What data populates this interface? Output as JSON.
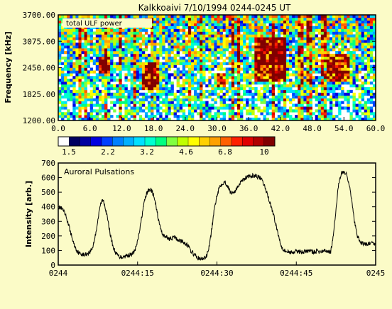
{
  "title": "Kalkkoaivi 7/10/1994 0244-0245 UT",
  "chart_data": [
    {
      "type": "heatmap",
      "title": "Kalkkoaivi 7/10/1994 0244-0245 UT",
      "inset_label": "total ULF power",
      "ylabel": "Frequency [kHz]",
      "xlabel": "",
      "xlim": [
        0,
        60
      ],
      "ylim": [
        1200,
        3700
      ],
      "x_ticks": [
        "0.0",
        "6.0",
        "12.0",
        "18.0",
        "24.0",
        "30.0",
        "36.0",
        "42.0",
        "48.0",
        "54.0",
        "60.0"
      ],
      "y_ticks": [
        "1200.00",
        "1825.00",
        "2450.00",
        "3075.00",
        "3700.00"
      ],
      "colorbar": {
        "tick_labels": [
          "1.5",
          "2.2",
          "3.2",
          "4.6",
          "6.8",
          "10"
        ],
        "colors": [
          "#ffffff",
          "#000060",
          "#0000a0",
          "#0000e0",
          "#0040ff",
          "#0080ff",
          "#00b0ff",
          "#00e0ff",
          "#00ffd0",
          "#00ff80",
          "#80ff40",
          "#c0ff00",
          "#ffff00",
          "#ffd000",
          "#ffa000",
          "#ff6000",
          "#ff2000",
          "#e00000",
          "#b00000",
          "#800000"
        ]
      },
      "intense_bands": [
        {
          "x": [
            16,
            19
          ],
          "y": [
            1950,
            2550
          ]
        },
        {
          "x": [
            30,
            31.5
          ],
          "y": [
            2000,
            2350
          ]
        },
        {
          "x": [
            37,
            43
          ],
          "y": [
            2150,
            3150
          ]
        },
        {
          "x": [
            51,
            55
          ],
          "y": [
            2150,
            2750
          ]
        },
        {
          "x": [
            7.5,
            10
          ],
          "y": [
            2300,
            2700
          ]
        }
      ]
    },
    {
      "type": "line",
      "title": "Auroral Pulsations",
      "xlabel": "",
      "ylabel": "Intensity [arb.]",
      "x_ticks": [
        "0244",
        "0244:15",
        "0244:30",
        "0244:45",
        "0245"
      ],
      "xlim": [
        0,
        60
      ],
      "ylim": [
        0,
        700
      ],
      "y_ticks": [
        0,
        100,
        200,
        300,
        400,
        500,
        600,
        700
      ],
      "series": [
        {
          "x": [
            0,
            0.5,
            1.0,
            1.5,
            2.0,
            2.5,
            3.0,
            3.5,
            4.0,
            4.5,
            5.0,
            5.5,
            6.0,
            6.5,
            7.0,
            7.5,
            8.0,
            8.5,
            9.0,
            9.5,
            10.0,
            10.5,
            11.0,
            11.5,
            12.0,
            12.5,
            13.0,
            13.5,
            14.0,
            14.5,
            15.0,
            15.5,
            16.0,
            16.5,
            17.0,
            17.5,
            18.0,
            18.5,
            19.0,
            19.5,
            20.0,
            20.5,
            21.0,
            21.5,
            22.0,
            22.5,
            23.0,
            23.5,
            24.0,
            24.5,
            25.0,
            25.5,
            26.0,
            26.5,
            27.0,
            27.5,
            28.0,
            28.5,
            29.0,
            29.5,
            30.0,
            30.5,
            31.0,
            31.5,
            32.0,
            32.5,
            33.0,
            33.5,
            34.0,
            34.5,
            35.0,
            35.5,
            36.0,
            36.5,
            37.0,
            37.5,
            38.0,
            38.5,
            39.0,
            39.5,
            40.0,
            40.5,
            41.0,
            41.5,
            42.0,
            42.5,
            43.0,
            43.5,
            44.0,
            44.5,
            45.0,
            45.5,
            46.0,
            46.5,
            47.0,
            47.5,
            48.0,
            48.5,
            49.0,
            49.5,
            50.0,
            50.5,
            51.0,
            51.5,
            52.0,
            52.5,
            53.0,
            53.5,
            54.0,
            54.5,
            55.0,
            55.5,
            56.0,
            56.5,
            57.0,
            57.5,
            58.0,
            58.5,
            59.0,
            59.5,
            60.0
          ],
          "values": [
            400,
            390,
            370,
            330,
            270,
            200,
            140,
            100,
            80,
            75,
            70,
            80,
            90,
            120,
            200,
            310,
            420,
            450,
            380,
            280,
            180,
            110,
            75,
            60,
            55,
            60,
            65,
            70,
            75,
            100,
            160,
            260,
            380,
            470,
            510,
            520,
            480,
            400,
            300,
            230,
            200,
            190,
            180,
            185,
            190,
            175,
            170,
            160,
            150,
            135,
            100,
            80,
            60,
            45,
            40,
            45,
            60,
            120,
            240,
            380,
            480,
            540,
            560,
            570,
            545,
            500,
            495,
            510,
            540,
            575,
            590,
            600,
            605,
            610,
            615,
            610,
            600,
            580,
            540,
            490,
            430,
            370,
            300,
            220,
            150,
            110,
            95,
            90,
            88,
            90,
            92,
            95,
            90,
            92,
            95,
            98,
            92,
            90,
            95,
            90,
            95,
            98,
            95,
            90,
            200,
            380,
            560,
            630,
            640,
            620,
            560,
            430,
            300,
            200,
            160,
            150,
            140,
            145,
            150,
            145,
            150
          ]
        }
      ]
    }
  ]
}
